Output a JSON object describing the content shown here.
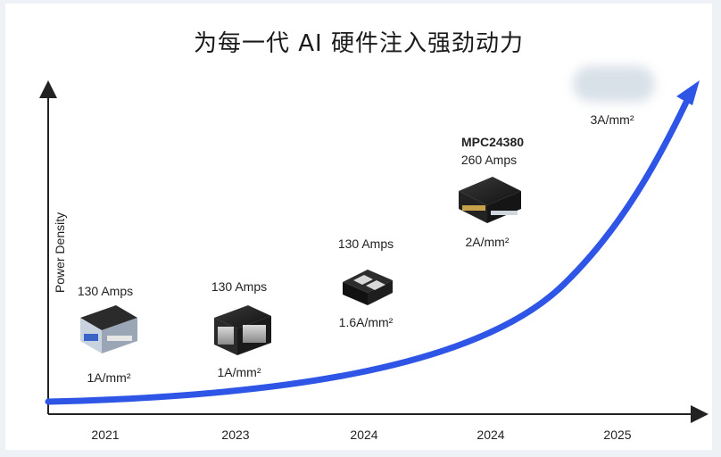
{
  "title": "为每一代 AI 硬件注入强劲动力",
  "chart_data": {
    "type": "line",
    "xlabel": "",
    "ylabel": "Power Density",
    "categories": [
      "2021",
      "2023",
      "2024",
      "2024",
      "2025"
    ],
    "curve_color": "#2f55e6",
    "products": [
      {
        "category_index": 0,
        "current": "130 Amps",
        "density": "1A/mm²"
      },
      {
        "category_index": 1,
        "current": "130 Amps",
        "density": "1A/mm²"
      },
      {
        "category_index": 2,
        "current": "130 Amps",
        "density": "1.6A/mm²"
      },
      {
        "category_index": 3,
        "name": "MPC24380",
        "current": "260 Amps",
        "density": "2A/mm²"
      },
      {
        "category_index": 4,
        "density": "3A/mm²"
      }
    ]
  }
}
